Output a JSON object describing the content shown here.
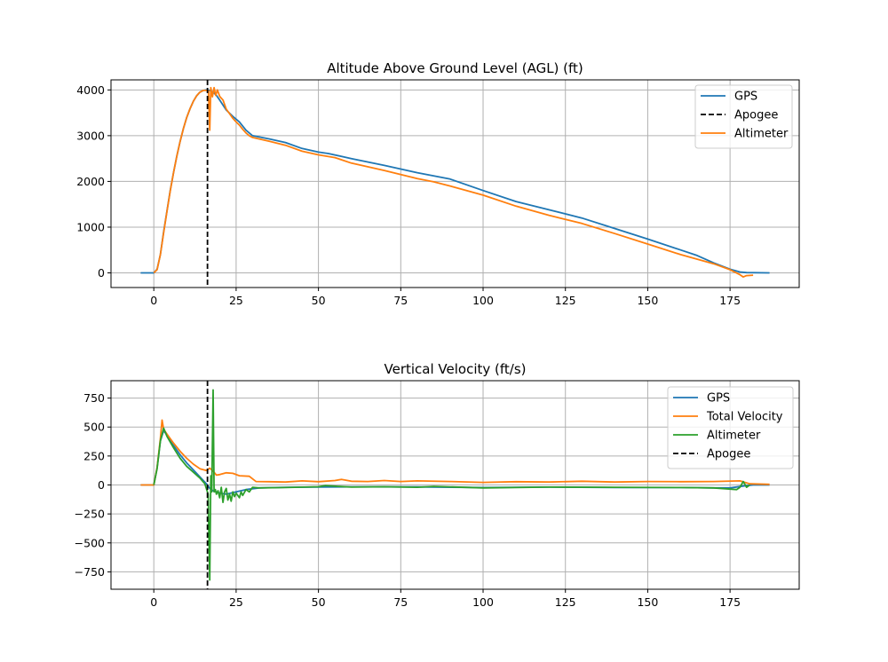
{
  "chart_data": [
    {
      "type": "line",
      "title": "Altitude Above Ground Level (AGL) (ft)",
      "xlabel": "",
      "ylabel": "",
      "xlim": [
        -13,
        196
      ],
      "ylim": [
        -320,
        4220
      ],
      "xticks": [
        0,
        25,
        50,
        75,
        100,
        125,
        150,
        175
      ],
      "yticks": [
        0,
        1000,
        2000,
        3000,
        4000
      ],
      "grid": true,
      "legend_position": "top-right",
      "apogee_x": 16.3,
      "series": [
        {
          "name": "GPS",
          "color": "#1f77b4",
          "points": [
            [
              -4,
              0
            ],
            [
              -1,
              0
            ],
            [
              0,
              0
            ],
            [
              1,
              80
            ],
            [
              2,
              400
            ],
            [
              3,
              900
            ],
            [
              4,
              1350
            ],
            [
              5,
              1800
            ],
            [
              6,
              2200
            ],
            [
              7,
              2560
            ],
            [
              8,
              2880
            ],
            [
              9,
              3160
            ],
            [
              10,
              3400
            ],
            [
              11,
              3590
            ],
            [
              12,
              3750
            ],
            [
              13,
              3870
            ],
            [
              14,
              3950
            ],
            [
              15,
              3990
            ],
            [
              16,
              4000
            ],
            [
              17,
              3990
            ],
            [
              18,
              3950
            ],
            [
              19,
              3880
            ],
            [
              20,
              3780
            ],
            [
              22,
              3560
            ],
            [
              24,
              3420
            ],
            [
              26,
              3300
            ],
            [
              28,
              3120
            ],
            [
              30,
              3000
            ],
            [
              35,
              2930
            ],
            [
              40,
              2850
            ],
            [
              45,
              2720
            ],
            [
              50,
              2640
            ],
            [
              53,
              2610
            ],
            [
              60,
              2500
            ],
            [
              70,
              2350
            ],
            [
              80,
              2190
            ],
            [
              90,
              2050
            ],
            [
              100,
              1800
            ],
            [
              110,
              1560
            ],
            [
              120,
              1380
            ],
            [
              130,
              1200
            ],
            [
              140,
              970
            ],
            [
              150,
              740
            ],
            [
              160,
              500
            ],
            [
              165,
              380
            ],
            [
              170,
              220
            ],
            [
              175,
              80
            ],
            [
              178,
              20
            ],
            [
              180,
              5
            ],
            [
              187,
              0
            ]
          ]
        },
        {
          "name": "Altimeter",
          "color": "#ff7f0e",
          "points": [
            [
              0,
              0
            ],
            [
              1,
              70
            ],
            [
              2,
              400
            ],
            [
              3,
              880
            ],
            [
              4,
              1340
            ],
            [
              5,
              1790
            ],
            [
              6,
              2200
            ],
            [
              7,
              2560
            ],
            [
              8,
              2880
            ],
            [
              9,
              3160
            ],
            [
              10,
              3400
            ],
            [
              11,
              3590
            ],
            [
              12,
              3750
            ],
            [
              13,
              3870
            ],
            [
              14,
              3950
            ],
            [
              15,
              3990
            ],
            [
              16,
              3990
            ],
            [
              16.6,
              3980
            ],
            [
              17,
              3120
            ],
            [
              17.3,
              4050
            ],
            [
              17.8,
              3850
            ],
            [
              18.3,
              4050
            ],
            [
              18.8,
              3880
            ],
            [
              19.3,
              4000
            ],
            [
              20,
              3860
            ],
            [
              21,
              3780
            ],
            [
              22,
              3580
            ],
            [
              23,
              3480
            ],
            [
              24,
              3380
            ],
            [
              25,
              3300
            ],
            [
              26,
              3230
            ],
            [
              27,
              3140
            ],
            [
              28,
              3060
            ],
            [
              29,
              3000
            ],
            [
              30,
              2960
            ],
            [
              35,
              2880
            ],
            [
              40,
              2790
            ],
            [
              45,
              2660
            ],
            [
              50,
              2580
            ],
            [
              55,
              2520
            ],
            [
              60,
              2400
            ],
            [
              70,
              2240
            ],
            [
              80,
              2060
            ],
            [
              85,
              1990
            ],
            [
              90,
              1900
            ],
            [
              100,
              1700
            ],
            [
              110,
              1460
            ],
            [
              120,
              1260
            ],
            [
              130,
              1080
            ],
            [
              140,
              860
            ],
            [
              150,
              630
            ],
            [
              160,
              400
            ],
            [
              170,
              200
            ],
            [
              175,
              70
            ],
            [
              178,
              -40
            ],
            [
              179,
              -90
            ],
            [
              180,
              -60
            ],
            [
              182,
              -50
            ]
          ]
        }
      ]
    },
    {
      "type": "line",
      "title": "Vertical Velocity (ft/s)",
      "xlabel": "",
      "ylabel": "",
      "xlim": [
        -13,
        196
      ],
      "ylim": [
        -900,
        900
      ],
      "xticks": [
        0,
        25,
        50,
        75,
        100,
        125,
        150,
        175
      ],
      "yticks": [
        -750,
        -500,
        -250,
        0,
        250,
        500,
        750
      ],
      "grid": true,
      "legend_position": "top-right",
      "apogee_x": 16.3,
      "series": [
        {
          "name": "GPS",
          "color": "#1f77b4",
          "points": [
            [
              -4,
              0
            ],
            [
              0,
              0
            ],
            [
              1,
              150
            ],
            [
              2,
              380
            ],
            [
              3,
              470
            ],
            [
              4,
              430
            ],
            [
              6,
              340
            ],
            [
              8,
              260
            ],
            [
              10,
              190
            ],
            [
              12,
              130
            ],
            [
              14,
              70
            ],
            [
              16,
              10
            ],
            [
              17,
              -30
            ],
            [
              18,
              -50
            ],
            [
              20,
              -70
            ],
            [
              22,
              -80
            ],
            [
              25,
              -60
            ],
            [
              28,
              -40
            ],
            [
              32,
              -25
            ],
            [
              40,
              -20
            ],
            [
              50,
              -18
            ],
            [
              60,
              -16
            ],
            [
              80,
              -17
            ],
            [
              100,
              -22
            ],
            [
              120,
              -18
            ],
            [
              140,
              -22
            ],
            [
              160,
              -22
            ],
            [
              170,
              -25
            ],
            [
              175,
              -25
            ],
            [
              180,
              -5
            ],
            [
              182,
              0
            ],
            [
              187,
              0
            ]
          ]
        },
        {
          "name": "Total Velocity",
          "color": "#ff7f0e",
          "points": [
            [
              -4,
              0
            ],
            [
              0,
              0
            ],
            [
              1,
              150
            ],
            [
              2,
              400
            ],
            [
              2.5,
              560
            ],
            [
              3,
              480
            ],
            [
              4,
              440
            ],
            [
              6,
              360
            ],
            [
              8,
              290
            ],
            [
              10,
              230
            ],
            [
              12,
              180
            ],
            [
              14,
              140
            ],
            [
              16,
              125
            ],
            [
              17,
              145
            ],
            [
              18,
              120
            ],
            [
              19,
              85
            ],
            [
              20,
              90
            ],
            [
              22,
              105
            ],
            [
              24,
              100
            ],
            [
              26,
              80
            ],
            [
              29,
              75
            ],
            [
              31,
              30
            ],
            [
              35,
              28
            ],
            [
              40,
              25
            ],
            [
              45,
              35
            ],
            [
              50,
              28
            ],
            [
              55,
              38
            ],
            [
              57,
              48
            ],
            [
              60,
              32
            ],
            [
              65,
              30
            ],
            [
              70,
              38
            ],
            [
              75,
              30
            ],
            [
              80,
              35
            ],
            [
              90,
              30
            ],
            [
              100,
              22
            ],
            [
              110,
              28
            ],
            [
              120,
              25
            ],
            [
              130,
              32
            ],
            [
              140,
              25
            ],
            [
              150,
              30
            ],
            [
              160,
              28
            ],
            [
              170,
              30
            ],
            [
              178,
              35
            ],
            [
              181,
              10
            ],
            [
              187,
              5
            ]
          ]
        },
        {
          "name": "Altimeter",
          "color": "#2ca02c",
          "points": [
            [
              0,
              0
            ],
            [
              1,
              140
            ],
            [
              2,
              380
            ],
            [
              3,
              490
            ],
            [
              4,
              420
            ],
            [
              6,
              320
            ],
            [
              8,
              230
            ],
            [
              10,
              160
            ],
            [
              12,
              110
            ],
            [
              14,
              60
            ],
            [
              15.5,
              10
            ],
            [
              16.5,
              -80
            ],
            [
              17,
              -820
            ],
            [
              17.3,
              80
            ],
            [
              17.6,
              -60
            ],
            [
              18,
              820
            ],
            [
              18.3,
              -60
            ],
            [
              18.7,
              -40
            ],
            [
              19,
              -80
            ],
            [
              19.5,
              -50
            ],
            [
              20,
              -110
            ],
            [
              20.5,
              -20
            ],
            [
              21,
              -150
            ],
            [
              21.5,
              -60
            ],
            [
              22,
              -30
            ],
            [
              22.5,
              -130
            ],
            [
              23,
              -80
            ],
            [
              23.5,
              -140
            ],
            [
              24,
              -60
            ],
            [
              24.5,
              -100
            ],
            [
              25,
              -70
            ],
            [
              26,
              -110
            ],
            [
              26.5,
              -60
            ],
            [
              27,
              -90
            ],
            [
              28,
              -40
            ],
            [
              29,
              -60
            ],
            [
              30,
              -20
            ],
            [
              32,
              -25
            ],
            [
              40,
              -22
            ],
            [
              50,
              -15
            ],
            [
              52,
              -5
            ],
            [
              60,
              -18
            ],
            [
              70,
              -15
            ],
            [
              80,
              -20
            ],
            [
              85,
              -12
            ],
            [
              100,
              -25
            ],
            [
              120,
              -18
            ],
            [
              140,
              -20
            ],
            [
              160,
              -22
            ],
            [
              170,
              -25
            ],
            [
              177,
              -40
            ],
            [
              178,
              -20
            ],
            [
              179,
              30
            ],
            [
              180,
              -20
            ],
            [
              181,
              0
            ]
          ]
        },
        {
          "name": "Apogee",
          "color": "#000000",
          "points": []
        }
      ]
    }
  ],
  "top_legend": [
    {
      "label": "GPS",
      "color": "#1f77b4",
      "style": "solid"
    },
    {
      "label": "Apogee",
      "color": "#000000",
      "style": "dashed"
    },
    {
      "label": "Altimeter",
      "color": "#ff7f0e",
      "style": "solid"
    }
  ],
  "bottom_legend": [
    {
      "label": "GPS",
      "color": "#1f77b4",
      "style": "solid"
    },
    {
      "label": "Total Velocity",
      "color": "#ff7f0e",
      "style": "solid"
    },
    {
      "label": "Altimeter",
      "color": "#2ca02c",
      "style": "solid"
    },
    {
      "label": "Apogee",
      "color": "#000000",
      "style": "dashed"
    }
  ]
}
